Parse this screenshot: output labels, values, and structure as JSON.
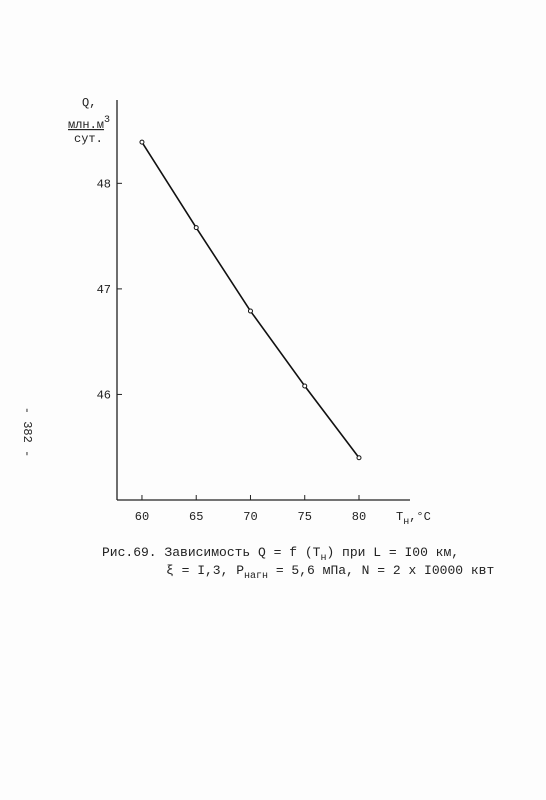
{
  "page_number": "- 382 -",
  "chart_data": {
    "type": "line",
    "y_label": {
      "symbol": "Q,",
      "numerator": "млн.м",
      "exponent": "3",
      "denominator": "сут."
    },
    "x_label": {
      "symbol": "T",
      "subscript": "н",
      "unit": ",°C"
    },
    "x": [
      60,
      65,
      70,
      75,
      80
    ],
    "series": [
      {
        "color": "#111111",
        "values": [
          48.39,
          47.58,
          46.79,
          46.08,
          45.4
        ]
      }
    ],
    "xlim": [
      57.7,
      84.7
    ],
    "xticks": [
      60,
      65,
      70,
      75,
      80
    ],
    "ylim": [
      45,
      48.6
    ],
    "yticks": [
      46,
      47,
      48
    ],
    "markers": true,
    "caption": [
      [
        {
          "text": "Рис.69. Зависимость  Q = f (T"
        },
        {
          "text": "н",
          "sub": true
        },
        {
          "text": ")  при  L = I00 км,"
        }
      ],
      [
        {
          "text": "ξ = I,3, P"
        },
        {
          "text": "нагн",
          "sub": true
        },
        {
          "text": " = 5,6 мПа,  N = 2 x I0000 квт"
        }
      ]
    ]
  }
}
